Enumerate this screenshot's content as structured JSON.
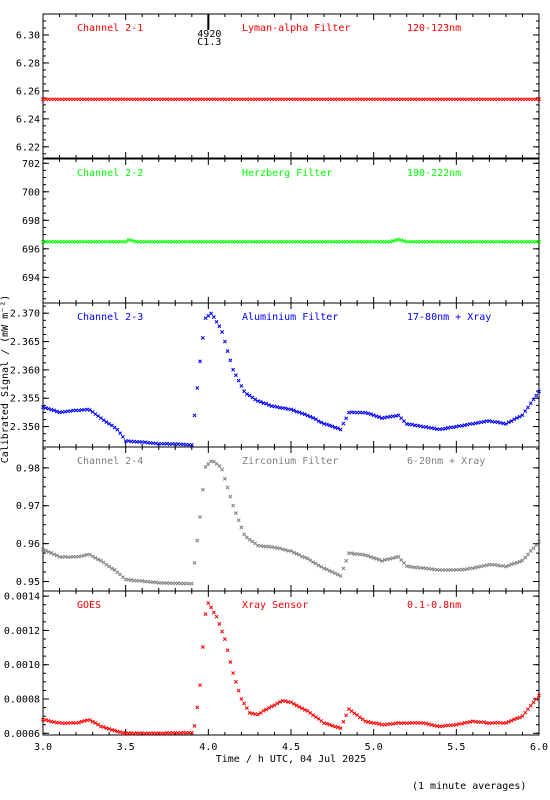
{
  "chart_data": {
    "type": "scatter",
    "xlabel": "Time / h UTC, 04 Jul 2025",
    "ylabel": "Calibrated Signal / (mW m⁻²)",
    "footnote": "(1 minute averages)",
    "xlim": [
      3.0,
      6.0
    ],
    "xticks": [
      "3.0",
      "3.5",
      "4.0",
      "4.5",
      "5.0",
      "5.5",
      "6.0"
    ],
    "flare_marker": {
      "x": 4.0,
      "label1": "4920",
      "label2": "C1.3"
    },
    "panels": [
      {
        "channel": "Channel 2-1",
        "filter": "Lyman-alpha Filter",
        "band": "120-123nm",
        "color": "#ff0000",
        "ylim": [
          6.212,
          6.315
        ],
        "yticks": [
          "6.22",
          "6.24",
          "6.26",
          "6.28",
          "6.30"
        ],
        "ytick_values": [
          6.22,
          6.24,
          6.26,
          6.28,
          6.3
        ],
        "x": [
          3.0,
          6.0
        ],
        "y": [
          6.254,
          6.254
        ]
      },
      {
        "channel": "Channel 2-2",
        "filter": "Herzberg Filter",
        "band": "190-222nm",
        "color": "#00ff00",
        "ylim": [
          692.2,
          702.3
        ],
        "yticks": [
          "694",
          "696",
          "698",
          "700",
          "702"
        ],
        "ytick_values": [
          694,
          696,
          698,
          700,
          702
        ],
        "x": [
          3.0,
          3.5,
          3.52,
          3.56,
          5.1,
          5.15,
          5.2,
          6.0
        ],
        "y": [
          696.5,
          696.5,
          696.65,
          696.5,
          696.5,
          696.65,
          696.5,
          696.5
        ]
      },
      {
        "channel": "Channel 2-3",
        "filter": "Aluminium Filter",
        "band": "17-80nm + Xray",
        "color": "#0000ff",
        "ylim": [
          2.3464,
          2.3718
        ],
        "yticks": [
          "2.350",
          "2.355",
          "2.360",
          "2.365",
          "2.370"
        ],
        "ytick_values": [
          2.35,
          2.355,
          2.36,
          2.365,
          2.37
        ],
        "x": [
          3.0,
          3.1,
          3.18,
          3.28,
          3.35,
          3.45,
          3.5,
          3.7,
          3.9,
          3.92,
          3.95,
          3.98,
          4.02,
          4.08,
          4.15,
          4.22,
          4.3,
          4.4,
          4.5,
          4.6,
          4.7,
          4.8,
          4.85,
          4.95,
          5.05,
          5.15,
          5.2,
          5.3,
          5.4,
          5.5,
          5.6,
          5.7,
          5.8,
          5.9,
          6.0
        ],
        "y": [
          2.3535,
          2.3525,
          2.3528,
          2.353,
          2.3515,
          2.3495,
          2.3475,
          2.347,
          2.3468,
          2.353,
          2.3615,
          2.369,
          2.37,
          2.367,
          2.36,
          2.356,
          2.3545,
          2.3535,
          2.353,
          2.352,
          2.3505,
          2.3495,
          2.3525,
          2.3525,
          2.3515,
          2.352,
          2.3505,
          2.35,
          2.3495,
          2.35,
          2.3505,
          2.351,
          2.3505,
          2.352,
          2.3562
        ]
      },
      {
        "channel": "Channel 2-4",
        "filter": "Zirconium Filter",
        "band": "6-20nm + Xray",
        "color": "#808080",
        "ylim": [
          0.9475,
          0.9855
        ],
        "yticks": [
          "0.95",
          "0.96",
          "0.97",
          "0.98"
        ],
        "ytick_values": [
          0.95,
          0.96,
          0.97,
          0.98
        ],
        "x": [
          3.0,
          3.1,
          3.2,
          3.28,
          3.35,
          3.45,
          3.5,
          3.7,
          3.9,
          3.92,
          3.95,
          3.98,
          4.02,
          4.08,
          4.15,
          4.22,
          4.3,
          4.4,
          4.5,
          4.6,
          4.7,
          4.8,
          4.85,
          4.95,
          5.05,
          5.15,
          5.2,
          5.3,
          5.4,
          5.5,
          5.6,
          5.7,
          5.8,
          5.9,
          6.0
        ],
        "y": [
          0.9585,
          0.9565,
          0.9565,
          0.9572,
          0.9555,
          0.9525,
          0.9505,
          0.9497,
          0.9494,
          0.956,
          0.967,
          0.98,
          0.982,
          0.98,
          0.97,
          0.962,
          0.9595,
          0.959,
          0.958,
          0.956,
          0.9535,
          0.9515,
          0.9575,
          0.957,
          0.9555,
          0.9565,
          0.954,
          0.9535,
          0.953,
          0.953,
          0.9535,
          0.9545,
          0.954,
          0.9555,
          0.9605
        ]
      },
      {
        "channel": "GOES",
        "filter": "Xray Sensor",
        "band": "0.1-0.8nm",
        "color": "#ff0000",
        "ylim": [
          0.00059,
          0.00143
        ],
        "yticks": [
          "0.0006",
          "0.0008",
          "0.0010",
          "0.0012",
          "0.0014"
        ],
        "ytick_values": [
          0.0006,
          0.0008,
          0.001,
          0.0012,
          0.0014
        ],
        "x": [
          3.0,
          3.1,
          3.2,
          3.28,
          3.35,
          3.45,
          3.5,
          3.7,
          3.9,
          3.92,
          3.95,
          3.98,
          4.0,
          4.05,
          4.1,
          4.15,
          4.2,
          4.25,
          4.3,
          4.35,
          4.45,
          4.5,
          4.6,
          4.7,
          4.8,
          4.85,
          4.95,
          5.05,
          5.15,
          5.3,
          5.4,
          5.5,
          5.6,
          5.7,
          5.8,
          5.9,
          6.0
        ],
        "y": [
          0.00068,
          0.00066,
          0.00066,
          0.00068,
          0.00064,
          0.00061,
          0.0006,
          0.0006,
          0.000605,
          0.00065,
          0.00088,
          0.00128,
          0.00136,
          0.00128,
          0.00115,
          0.00095,
          0.0008,
          0.00072,
          0.00071,
          0.00074,
          0.00079,
          0.00078,
          0.00073,
          0.00066,
          0.00063,
          0.00074,
          0.00067,
          0.00065,
          0.00066,
          0.00066,
          0.00064,
          0.00065,
          0.00067,
          0.00066,
          0.00066,
          0.0007,
          0.00082
        ]
      }
    ]
  }
}
